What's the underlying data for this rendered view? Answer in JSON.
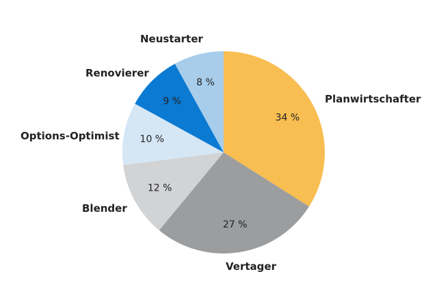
{
  "chart_data": {
    "type": "pie",
    "start_angle_deg": 0,
    "direction": "clockwise",
    "slices": [
      {
        "label": "Planwirtschafter",
        "value": 34,
        "value_label": "34 %",
        "color": "#F9BE51"
      },
      {
        "label": "Vertager",
        "value": 27,
        "value_label": "27 %",
        "color": "#9C9D9F"
      },
      {
        "label": "Blender",
        "value": 12,
        "value_label": "12 %",
        "color": "#D2D3D5"
      },
      {
        "label": "Options-Optimist",
        "value": 10,
        "value_label": "10 %",
        "color": "#D5E6F5"
      },
      {
        "label": "Renovierer",
        "value": 9,
        "value_label": "9 %",
        "color": "#0B7AD2"
      },
      {
        "label": "Neustarter",
        "value": 8,
        "value_label": "8 %",
        "color": "#A7CDEB"
      }
    ]
  }
}
